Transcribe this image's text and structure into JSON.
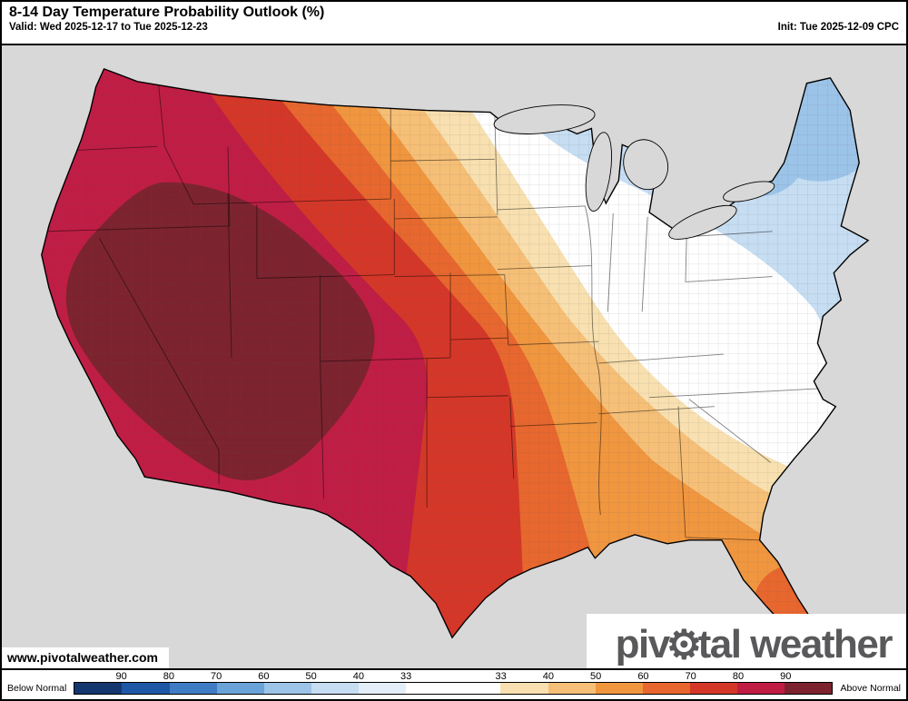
{
  "header": {
    "title": "8-14 Day Temperature Probability Outlook (%)",
    "valid": "Valid: Wed 2025-12-17 to Tue 2025-12-23",
    "init": "Init: Tue 2025-12-09 CPC"
  },
  "watermark": "www.pivotalweather.com",
  "logo": {
    "part1": "piv",
    "gear": "⚙",
    "part2": "tal weather"
  },
  "colorbar": {
    "below_label": "Below Normal",
    "above_label": "Above Normal",
    "ticks": [
      "90",
      "80",
      "70",
      "60",
      "50",
      "40",
      "33",
      "33",
      "40",
      "50",
      "60",
      "70",
      "80",
      "90"
    ],
    "segments": [
      "#14366f",
      "#1e57a6",
      "#3f7cc4",
      "#6aa3d8",
      "#9cc4e8",
      "#c6ddf2",
      "#e4eef9",
      "#ffffff",
      "#ffffff",
      "#f8e0b0",
      "#f6bf77",
      "#f0963f",
      "#e7672e",
      "#d43728",
      "#c01d45",
      "#7c232f"
    ]
  },
  "map": {
    "colors": {
      "ocean": "#d8d8d8",
      "land_base": "#ffffff",
      "outline": "#000000",
      "lakes": "#d8d8d8",
      "below_33_40": "#c6ddf2",
      "below_40_50": "#9cc4e8",
      "above_33_40": "#f8e0b0",
      "above_40_50": "#f6bf77",
      "above_50_60": "#f0963f",
      "above_60_70": "#e7672e",
      "above_70_80": "#d43728",
      "above_80_90": "#c01d45",
      "above_90_100": "#7c232f"
    }
  }
}
